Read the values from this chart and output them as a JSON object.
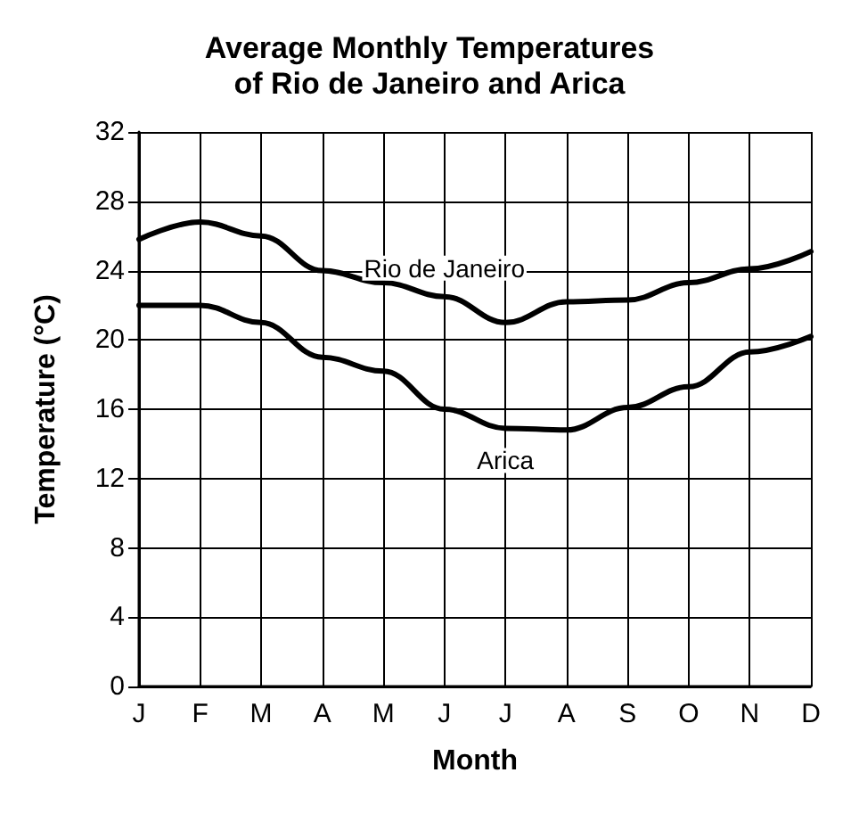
{
  "chart_data": {
    "type": "line",
    "title": "Average Monthly Temperatures\nof Rio de Janeiro and Arica",
    "xlabel": "Month",
    "ylabel": "Temperature (°C)",
    "categories": [
      "J",
      "F",
      "M",
      "A",
      "M",
      "J",
      "J",
      "A",
      "S",
      "O",
      "N",
      "D"
    ],
    "series": [
      {
        "name": "Rio de Janeiro",
        "color": "#000000",
        "values": [
          25.8,
          26.8,
          26,
          24,
          23.3,
          22.5,
          21,
          22.2,
          22.3,
          23.3,
          24.1,
          25.1
        ]
      },
      {
        "name": "Arica",
        "color": "#000000",
        "values": [
          22,
          22,
          21,
          19,
          18.2,
          16,
          14.9,
          14.8,
          16.1,
          17.3,
          19.3,
          20.2
        ]
      }
    ],
    "ylim": [
      0,
      32
    ],
    "yticks": [
      0,
      4,
      8,
      12,
      16,
      20,
      24,
      28,
      32
    ],
    "grid": true,
    "legend": false,
    "marker": "none",
    "line_style": "solid"
  }
}
